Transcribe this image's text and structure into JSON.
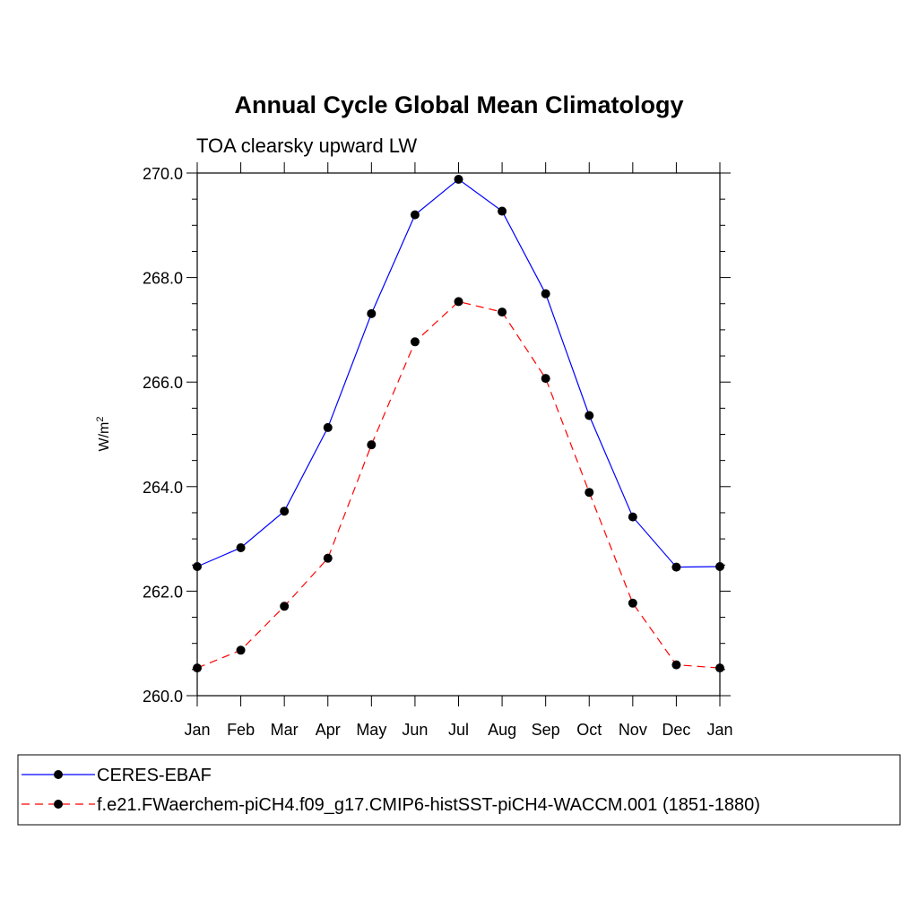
{
  "chart_data": {
    "type": "line",
    "title": "Annual Cycle Global Mean Climatology",
    "subtitle": "TOA clearsky upward LW",
    "ylabel": "W/m",
    "ylabel_sup": "2",
    "ylim": [
      260.0,
      270.0
    ],
    "y_ticks": [
      "260.0",
      "262.0",
      "264.0",
      "266.0",
      "268.0",
      "270.0"
    ],
    "categories": [
      "Jan",
      "Feb",
      "Mar",
      "Apr",
      "May",
      "Jun",
      "Jul",
      "Aug",
      "Sep",
      "Oct",
      "Nov",
      "Dec",
      "Jan"
    ],
    "grid": false,
    "legend_position": "bottom",
    "series": [
      {
        "name": "CERES-EBAF",
        "color": "#0000ff",
        "dashed": false,
        "values": [
          262.47,
          262.83,
          263.53,
          265.13,
          267.31,
          269.2,
          269.88,
          269.27,
          267.69,
          265.36,
          263.42,
          262.46,
          262.47
        ]
      },
      {
        "name": "f.e21.FWaerchem-piCH4.f09_g17.CMIP6-histSST-piCH4-WACCM.001 (1851-1880)",
        "color": "#ff0000",
        "dashed": true,
        "values": [
          260.53,
          260.87,
          261.71,
          262.63,
          264.8,
          266.77,
          267.54,
          267.34,
          266.07,
          263.89,
          261.77,
          260.59,
          260.53
        ]
      }
    ]
  }
}
